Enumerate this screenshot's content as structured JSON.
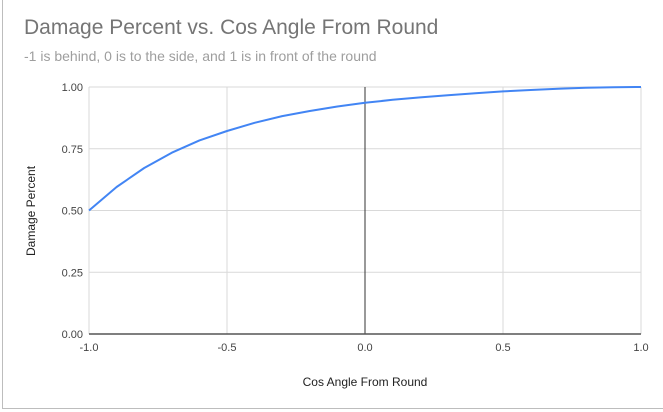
{
  "chart_data": {
    "type": "line",
    "title": "Damage Percent vs. Cos Angle From Round",
    "subtitle": "-1 is behind, 0 is to the side, and 1 is in front of the round",
    "xlabel": "Cos Angle From Round",
    "ylabel": "Damage Percent",
    "xlim": [
      -1,
      1
    ],
    "ylim": [
      0,
      1
    ],
    "x_ticks": [
      "-1.0",
      "-0.5",
      "0.0",
      "0.5",
      "1.0"
    ],
    "y_ticks": [
      "0.00",
      "0.25",
      "0.50",
      "0.75",
      "1.00"
    ],
    "grid": true,
    "series": [
      {
        "name": "Damage Percent",
        "color": "#4285f4",
        "x": [
          -1.0,
          -0.9,
          -0.8,
          -0.7,
          -0.6,
          -0.5,
          -0.4,
          -0.3,
          -0.2,
          -0.1,
          0.0,
          0.1,
          0.2,
          0.3,
          0.4,
          0.5,
          0.6,
          0.7,
          0.8,
          0.9,
          1.0
        ],
        "y": [
          0.5,
          0.595,
          0.672,
          0.734,
          0.784,
          0.822,
          0.855,
          0.882,
          0.903,
          0.921,
          0.936,
          0.948,
          0.958,
          0.967,
          0.975,
          0.982,
          0.988,
          0.993,
          0.997,
          0.999,
          1.0
        ]
      }
    ]
  }
}
